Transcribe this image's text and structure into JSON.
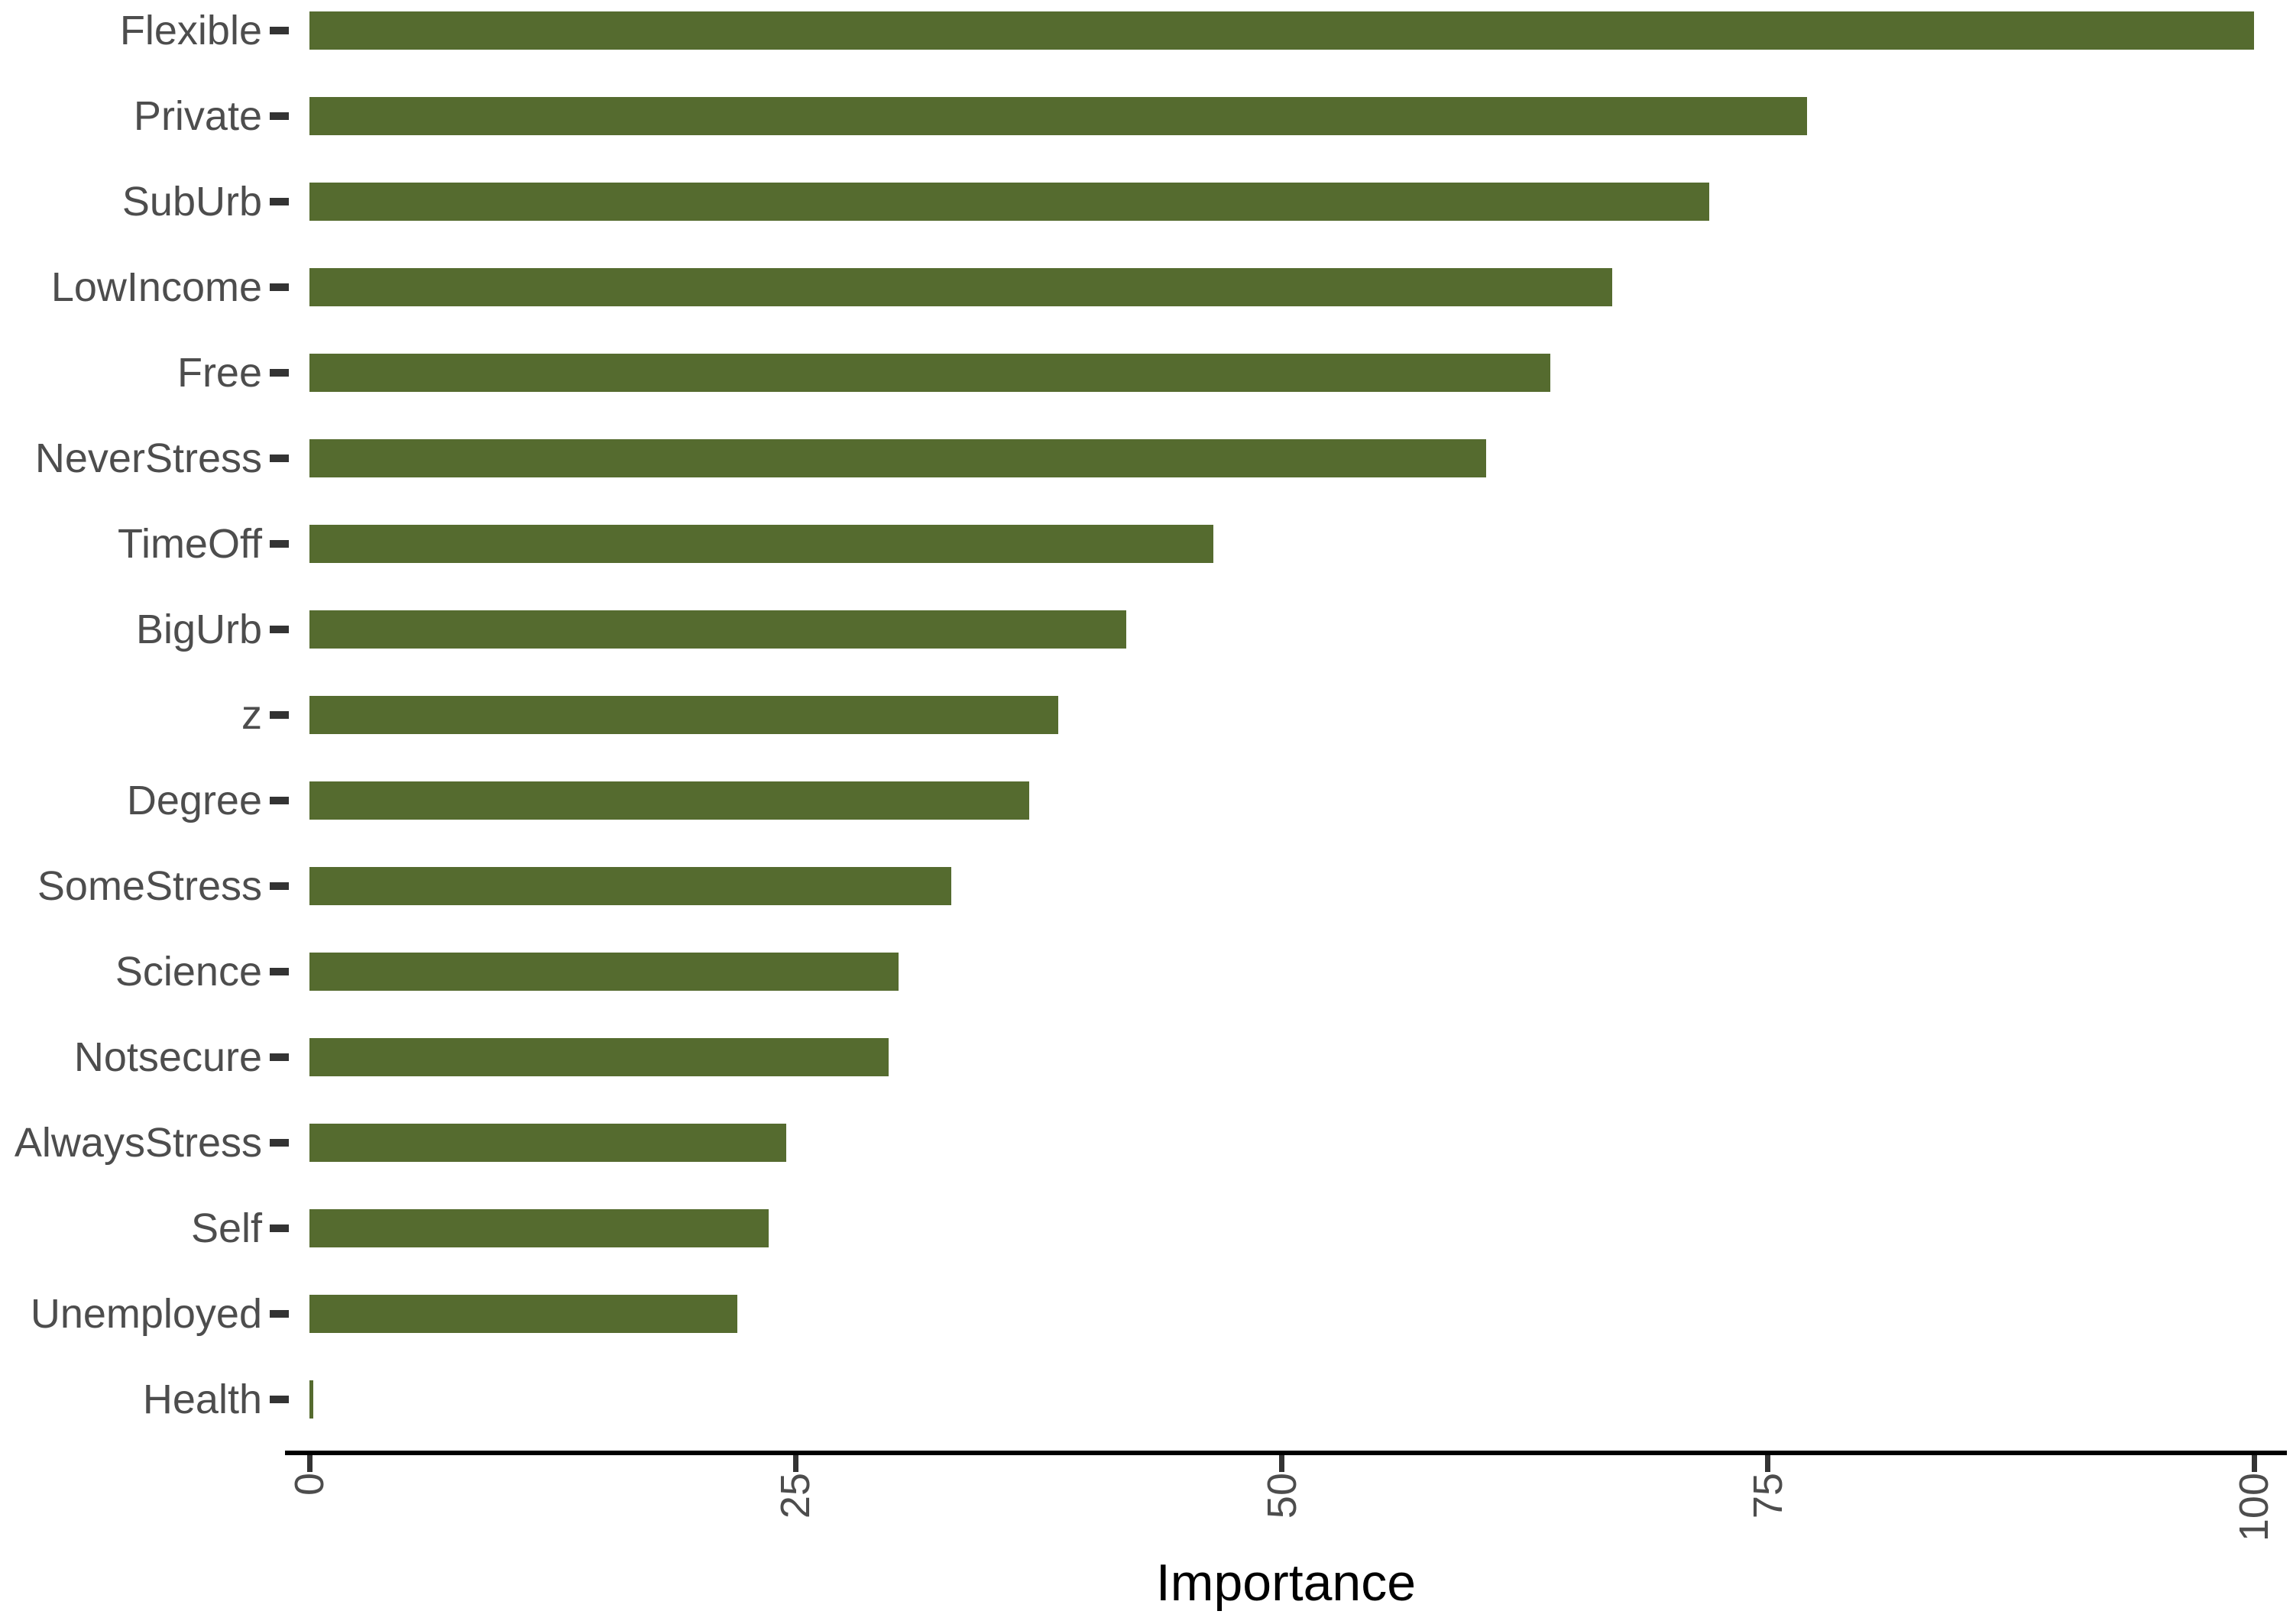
{
  "chart_data": {
    "type": "bar",
    "orientation": "horizontal",
    "title": "",
    "xlabel": "Importance",
    "ylabel": "",
    "categories": [
      "Flexible",
      "Private",
      "SubUrb",
      "LowIncome",
      "Free",
      "NeverStress",
      "TimeOff",
      "BigUrb",
      "z",
      "Degree",
      "SomeStress",
      "Science",
      "Notsecure",
      "AlwaysStress",
      "Self",
      "Unemployed",
      "Health"
    ],
    "values": [
      100,
      77,
      72,
      67,
      63.8,
      60.5,
      46.5,
      42,
      38.5,
      37,
      33,
      30.3,
      29.8,
      24.5,
      23.6,
      22,
      0.2
    ],
    "xlim": [
      0,
      100
    ],
    "x_ticks": [
      0,
      25,
      50,
      75,
      100
    ],
    "grid": "off",
    "legend": "none",
    "colors": {
      "bar": "#556B2F",
      "axis_text": "#4D4D4D",
      "tick": "#333333",
      "axis_line": "#000000",
      "title": "#000000",
      "background": "#FFFFFF"
    }
  }
}
